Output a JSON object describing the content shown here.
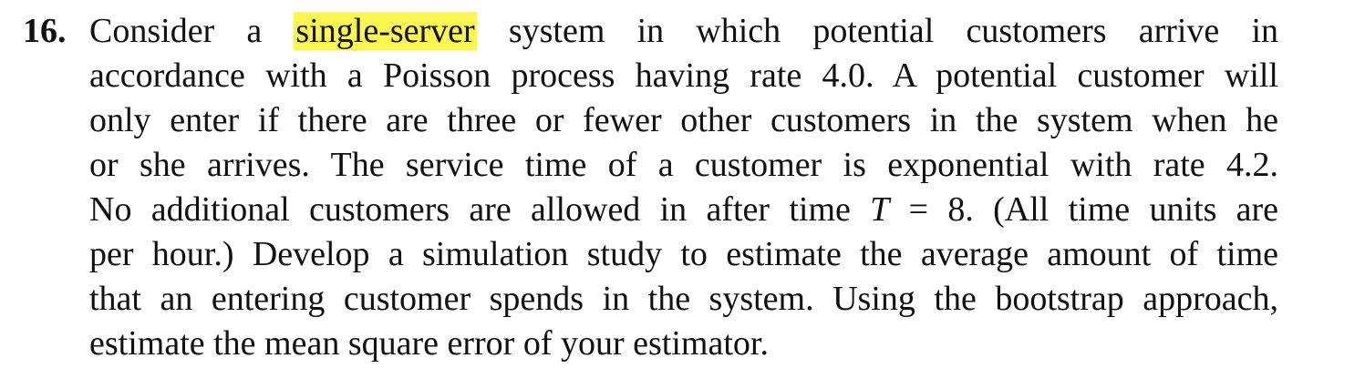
{
  "problem": {
    "number": "16.",
    "lines": [
      [
        {
          "text": "Consider a"
        },
        {
          "text": "single-server",
          "style": "highlight"
        },
        {
          "text": "system in which potential customers arrive in"
        }
      ],
      [
        {
          "text": "accordance with a Poisson process having rate 4.0. A potential customer will"
        }
      ],
      [
        {
          "text": "only enter if there are three or fewer other customers in the system when he"
        }
      ],
      [
        {
          "text": "or she arrives. The service time of a customer is exponential with rate 4.2."
        }
      ],
      [
        {
          "text": "No additional customers are allowed in after time"
        },
        {
          "text": "T",
          "style": "italic"
        },
        {
          "text": "="
        },
        {
          "text": "8. (All time units are"
        }
      ],
      [
        {
          "text": "per hour.) Develop a simulation study to estimate the average amount of time"
        }
      ],
      [
        {
          "text": "that an entering customer spends in the system. Using the bootstrap approach,"
        }
      ],
      [
        {
          "text": "estimate the mean square error of your estimator."
        }
      ]
    ]
  }
}
